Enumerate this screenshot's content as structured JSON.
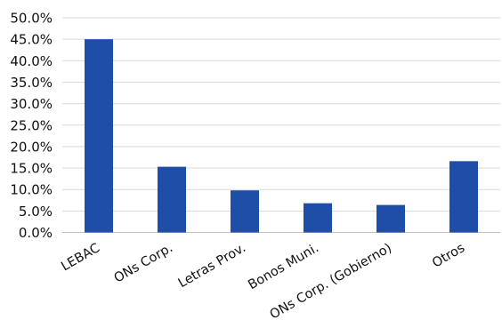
{
  "chart_data": {
    "type": "bar",
    "title": "",
    "xlabel": "",
    "ylabel": "",
    "categories": [
      "LEBAC",
      "ONs Corp.",
      "Letras Prov.",
      "Bonos Muni.",
      "ONs Corp. (Gobierno)",
      "Otros"
    ],
    "values": [
      45.0,
      15.3,
      9.8,
      6.8,
      6.4,
      16.6
    ],
    "ylim": [
      0,
      50
    ],
    "yticks": [
      "0.0%",
      "5.0%",
      "10.0%",
      "15.0%",
      "20.0%",
      "25.0%",
      "30.0%",
      "35.0%",
      "40.0%",
      "45.0%",
      "50.0%"
    ],
    "grid": true,
    "legend": "none",
    "bar_color": "#1f4ea8",
    "x_label_rotation": -30
  }
}
